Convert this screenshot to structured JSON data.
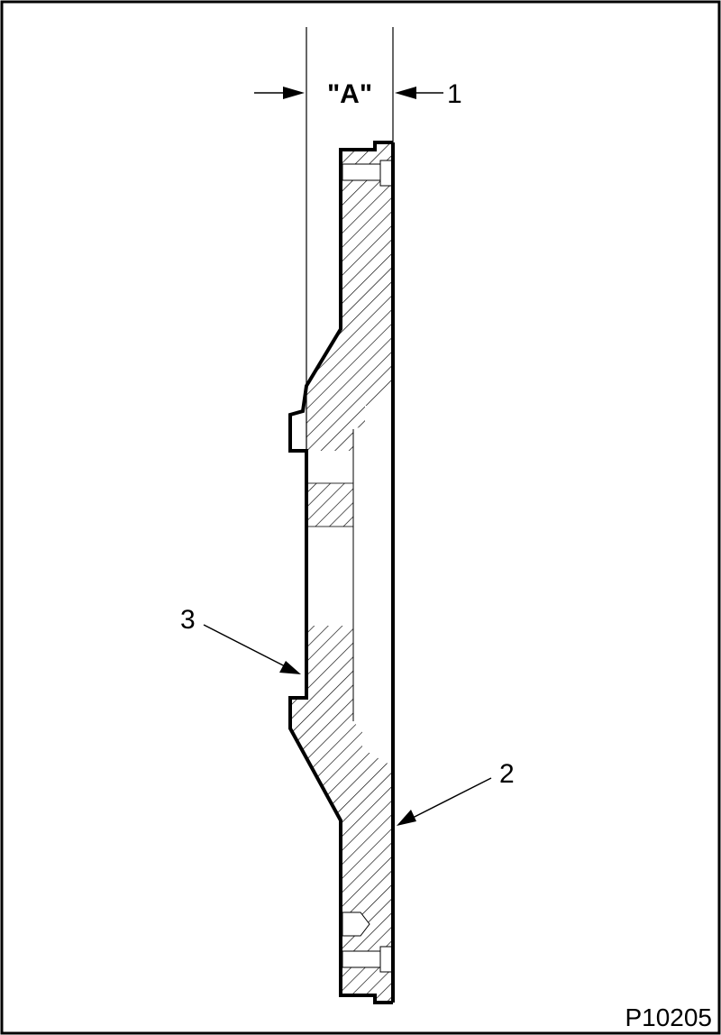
{
  "diagram": {
    "dimension_label": "\"A\"",
    "callouts": [
      "1",
      "2",
      "3"
    ],
    "figure_code": "P10205",
    "colors": {
      "ink": "#000000",
      "paper": "#ffffff",
      "hatch": "#000000"
    }
  }
}
